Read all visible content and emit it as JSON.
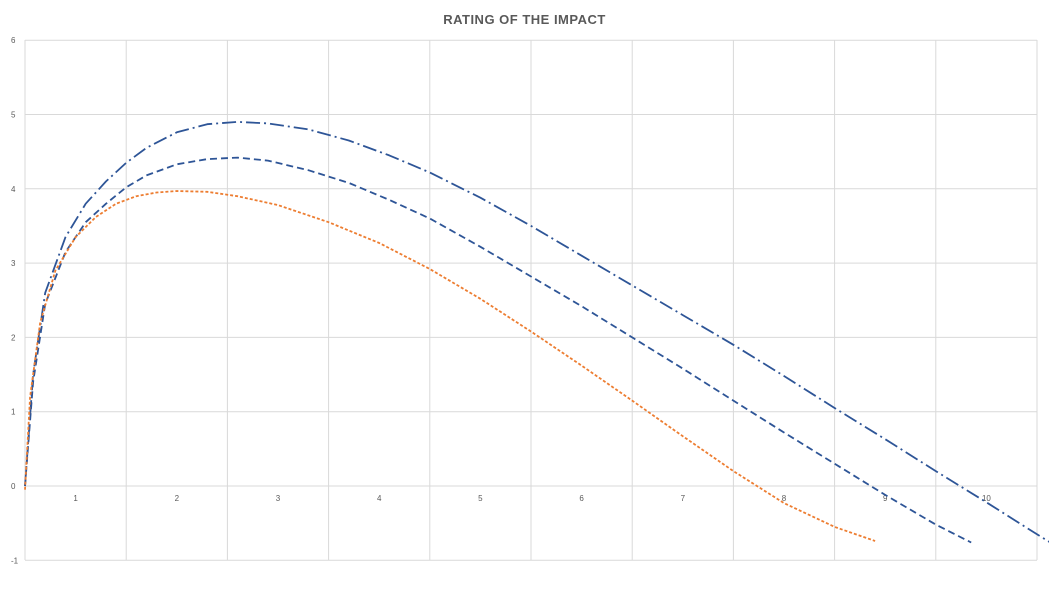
{
  "chart_data": {
    "type": "line",
    "title": "RATING OF THE IMPACT",
    "xlabel": "",
    "ylabel": "",
    "xlim": [
      0,
      10
    ],
    "ylim": [
      -1,
      6
    ],
    "x_ticks": [
      "1",
      "2",
      "3",
      "4",
      "5",
      "6",
      "7",
      "8",
      "9",
      "10"
    ],
    "y_ticks": [
      "-1",
      "0",
      "1",
      "2",
      "3",
      "4",
      "5",
      "6"
    ],
    "grid": true,
    "legend": "none",
    "series": [
      {
        "color": "#2e5597",
        "line_style": "dash-dot",
        "points": [
          [
            0.0,
            0.0
          ],
          [
            0.08,
            1.5
          ],
          [
            0.2,
            2.6
          ],
          [
            0.4,
            3.35
          ],
          [
            0.6,
            3.8
          ],
          [
            0.8,
            4.1
          ],
          [
            1.0,
            4.35
          ],
          [
            1.2,
            4.55
          ],
          [
            1.5,
            4.76
          ],
          [
            1.8,
            4.87
          ],
          [
            2.1,
            4.9
          ],
          [
            2.4,
            4.88
          ],
          [
            2.8,
            4.8
          ],
          [
            3.2,
            4.65
          ],
          [
            3.6,
            4.45
          ],
          [
            4.0,
            4.22
          ],
          [
            4.5,
            3.88
          ],
          [
            5.0,
            3.5
          ],
          [
            5.5,
            3.1
          ],
          [
            6.0,
            2.7
          ],
          [
            6.5,
            2.3
          ],
          [
            7.0,
            1.9
          ],
          [
            7.5,
            1.48
          ],
          [
            8.0,
            1.05
          ],
          [
            8.5,
            0.63
          ],
          [
            9.0,
            0.2
          ],
          [
            9.5,
            -0.22
          ],
          [
            10.0,
            -0.65
          ],
          [
            10.25,
            -0.86
          ]
        ]
      },
      {
        "color": "#2e5597",
        "line_style": "dash",
        "points": [
          [
            0.0,
            0.0
          ],
          [
            0.08,
            1.4
          ],
          [
            0.2,
            2.45
          ],
          [
            0.4,
            3.15
          ],
          [
            0.6,
            3.55
          ],
          [
            0.8,
            3.8
          ],
          [
            1.0,
            4.02
          ],
          [
            1.2,
            4.18
          ],
          [
            1.5,
            4.33
          ],
          [
            1.8,
            4.4
          ],
          [
            2.1,
            4.42
          ],
          [
            2.4,
            4.38
          ],
          [
            2.8,
            4.25
          ],
          [
            3.2,
            4.08
          ],
          [
            3.6,
            3.85
          ],
          [
            4.0,
            3.6
          ],
          [
            4.5,
            3.22
          ],
          [
            5.0,
            2.82
          ],
          [
            5.5,
            2.42
          ],
          [
            6.0,
            2.0
          ],
          [
            6.5,
            1.58
          ],
          [
            7.0,
            1.15
          ],
          [
            7.5,
            0.72
          ],
          [
            8.0,
            0.3
          ],
          [
            8.5,
            -0.12
          ],
          [
            9.0,
            -0.52
          ],
          [
            9.35,
            -0.76
          ]
        ]
      },
      {
        "color": "#ed7d31",
        "line_style": "short-dash",
        "points": [
          [
            0.0,
            -0.05
          ],
          [
            0.05,
            1.2
          ],
          [
            0.15,
            2.2
          ],
          [
            0.3,
            2.9
          ],
          [
            0.5,
            3.35
          ],
          [
            0.7,
            3.62
          ],
          [
            0.9,
            3.8
          ],
          [
            1.1,
            3.9
          ],
          [
            1.3,
            3.95
          ],
          [
            1.5,
            3.97
          ],
          [
            1.8,
            3.96
          ],
          [
            2.1,
            3.9
          ],
          [
            2.5,
            3.78
          ],
          [
            3.0,
            3.55
          ],
          [
            3.5,
            3.27
          ],
          [
            4.0,
            2.92
          ],
          [
            4.5,
            2.52
          ],
          [
            5.0,
            2.08
          ],
          [
            5.5,
            1.62
          ],
          [
            6.0,
            1.15
          ],
          [
            6.5,
            0.67
          ],
          [
            7.0,
            0.2
          ],
          [
            7.5,
            -0.23
          ],
          [
            8.0,
            -0.55
          ],
          [
            8.4,
            -0.74
          ]
        ]
      }
    ]
  }
}
